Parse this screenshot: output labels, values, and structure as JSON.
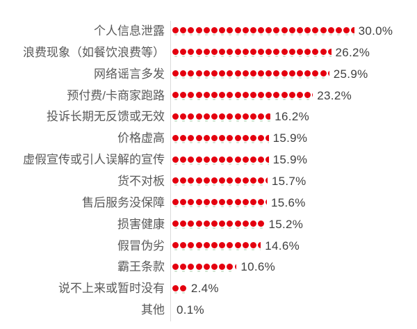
{
  "chart_data": {
    "type": "bar",
    "orientation": "horizontal",
    "style": "pictogram-dots",
    "title": "",
    "xlabel": "",
    "ylabel": "",
    "unit": "%",
    "grid": false,
    "legend": false,
    "xlim": [
      0,
      33
    ],
    "categories": [
      "个人信息泄露",
      "浪费现象（如餐饮浪费等）",
      "网络谣言多发",
      "预付费/卡商家跑路",
      "投诉长期无反馈或无效",
      "价格虚高",
      "虚假宣传或引人误解的宣传",
      "货不对板",
      "售后服务没保障",
      "损害健康",
      "假冒伪劣",
      "霸王条款",
      "说不上来或暂时没有",
      "其他"
    ],
    "values": [
      30.0,
      26.2,
      25.9,
      23.2,
      16.2,
      15.9,
      15.9,
      15.7,
      15.6,
      15.2,
      14.6,
      10.6,
      2.4,
      0.1
    ],
    "value_labels": [
      "30.0%",
      "26.2%",
      "25.9%",
      "23.2%",
      "16.2%",
      "15.9%",
      "15.9%",
      "15.7%",
      "15.6%",
      "15.2%",
      "14.6%",
      "10.6%",
      "2.4%",
      "0.1%"
    ],
    "colors": {
      "dot": "#e4000f",
      "stem": "#cfe3d0",
      "axis_line": "#d9d9d9",
      "category_text": "#595959",
      "value_text": "#3f3f3f",
      "background": "#ffffff"
    }
  }
}
